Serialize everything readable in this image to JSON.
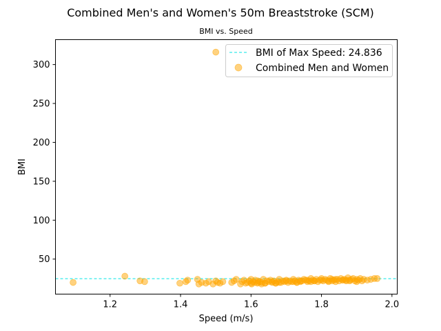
{
  "chart_data": {
    "type": "scatter",
    "title": "Combined Men's and Women's 50m Breaststroke (SCM)",
    "subtitle": "BMI vs. Speed",
    "xlabel": "Speed (m/s)",
    "ylabel": "BMI",
    "xlim": [
      1.045,
      2.015
    ],
    "ylim": [
      5,
      332
    ],
    "xticks": [
      1.2,
      1.4,
      1.6,
      1.8,
      2.0
    ],
    "xtick_labels": [
      "1.2",
      "1.4",
      "1.6",
      "1.8",
      "2.0"
    ],
    "yticks": [
      50,
      100,
      150,
      200,
      250,
      300
    ],
    "ytick_labels": [
      "50",
      "100",
      "150",
      "200",
      "250",
      "300"
    ],
    "grid": false,
    "legend_position": "top-right",
    "colors": {
      "scatter": "#ffa500",
      "reference_line": "#00e5e5"
    },
    "reference_line": {
      "name": "BMI of Max Speed: 24.836",
      "y": 24.836
    },
    "series": [
      {
        "name": "Combined Men and Women",
        "x": [
          1.095,
          1.242,
          1.285,
          1.298,
          1.398,
          1.415,
          1.42,
          1.448,
          1.452,
          1.46,
          1.472,
          1.48,
          1.492,
          1.5,
          1.5,
          1.505,
          1.512,
          1.52,
          1.545,
          1.552,
          1.558,
          1.57,
          1.575,
          1.58,
          1.585,
          1.59,
          1.595,
          1.6,
          1.602,
          1.605,
          1.61,
          1.612,
          1.618,
          1.62,
          1.625,
          1.63,
          1.635,
          1.64,
          1.645,
          1.65,
          1.655,
          1.66,
          1.665,
          1.67,
          1.675,
          1.68,
          1.685,
          1.69,
          1.695,
          1.7,
          1.705,
          1.71,
          1.715,
          1.72,
          1.725,
          1.73,
          1.735,
          1.74,
          1.745,
          1.75,
          1.755,
          1.76,
          1.765,
          1.77,
          1.775,
          1.78,
          1.785,
          1.79,
          1.795,
          1.8,
          1.805,
          1.81,
          1.815,
          1.82,
          1.825,
          1.83,
          1.835,
          1.84,
          1.845,
          1.85,
          1.855,
          1.86,
          1.865,
          1.87,
          1.875,
          1.88,
          1.885,
          1.89,
          1.895,
          1.9,
          1.905,
          1.91,
          1.915,
          1.92,
          1.93,
          1.94,
          1.95,
          1.958,
          1.6,
          1.62,
          1.64,
          1.66,
          1.68,
          1.7,
          1.72,
          1.74,
          1.76,
          1.78,
          1.8,
          1.82,
          1.84,
          1.86,
          1.88,
          1.9,
          1.63,
          1.67,
          1.73,
          1.77,
          1.83,
          1.87
        ],
        "y": [
          20,
          28,
          22,
          21,
          19,
          21,
          23,
          24,
          18,
          20,
          19,
          21,
          18,
          316,
          22,
          20,
          19,
          21,
          20,
          22,
          24,
          18,
          21,
          23,
          19,
          20,
          22,
          24,
          18,
          21,
          20,
          23,
          19,
          22,
          21,
          20,
          24,
          19,
          22,
          21,
          23,
          20,
          22,
          19,
          21,
          24,
          20,
          22,
          21,
          23,
          20,
          22,
          21,
          24,
          22,
          20,
          23,
          21,
          22,
          24,
          23,
          21,
          22,
          25,
          23,
          22,
          24,
          21,
          23,
          25,
          22,
          24,
          23,
          22,
          25,
          24,
          23,
          21,
          24,
          22,
          25,
          23,
          24,
          22,
          26,
          23,
          24,
          25,
          22,
          24,
          23,
          25,
          22,
          24,
          23,
          24,
          25,
          25,
          19,
          20,
          19,
          21,
          20,
          22,
          21,
          22,
          23,
          22,
          23,
          21,
          24,
          23,
          22,
          21,
          18,
          19,
          20,
          21,
          22,
          23
        ]
      }
    ]
  }
}
